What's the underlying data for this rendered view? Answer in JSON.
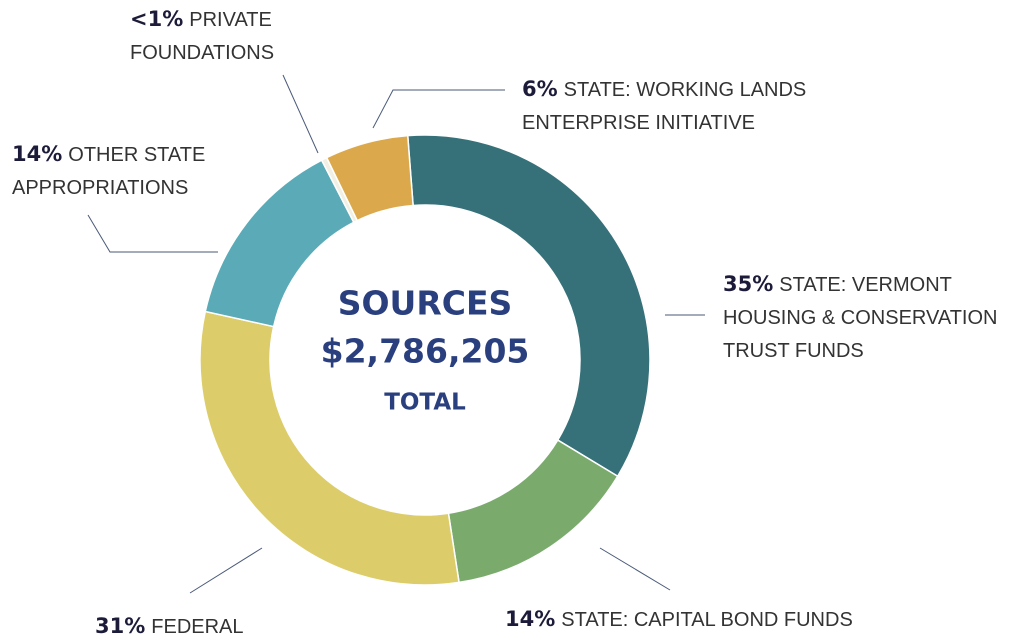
{
  "chart_data": {
    "type": "donut",
    "title": "SOURCES",
    "total": "$2,786,205",
    "total_label": "TOTAL",
    "categories": [
      "STATE: VERMONT HOUSING & CONSERVATION TRUST FUNDS",
      "STATE: CAPITAL BOND FUNDS",
      "FEDERAL",
      "OTHER STATE APPROPRIATIONS",
      "PRIVATE FOUNDATIONS",
      "STATE: WORKING LANDS ENTERPRISE INITIATIVE"
    ],
    "values": [
      35,
      14,
      31,
      14,
      0.4,
      6
    ],
    "value_labels": [
      "35%",
      "14%",
      "31%",
      "14%",
      "<1%",
      "6%"
    ],
    "colors": [
      "#36717a",
      "#7aab6d",
      "#dccd6a",
      "#5aaab7",
      "#f2f0e4",
      "#dba94c"
    ]
  }
}
